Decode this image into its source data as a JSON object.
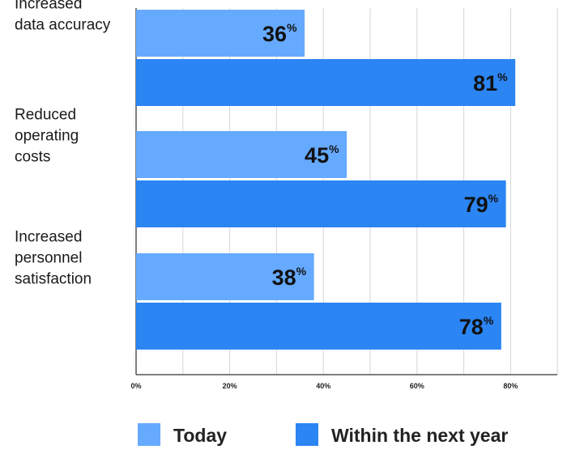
{
  "chart_data": {
    "type": "bar",
    "orientation": "horizontal",
    "categories": [
      [
        "Increased",
        "data accuracy"
      ],
      [
        "Reduced",
        "operating",
        "costs"
      ],
      [
        "Increased",
        "personnel",
        "satisfaction"
      ]
    ],
    "series": [
      {
        "name": "Today",
        "values": [
          36,
          45,
          38
        ],
        "color": "#66aaff"
      },
      {
        "name": "Within the next year",
        "values": [
          81,
          79,
          78
        ],
        "color": "#2b85f3"
      }
    ],
    "value_unit": "%",
    "xlim": [
      0,
      90
    ],
    "x_ticks": [
      0,
      20,
      40,
      60,
      80
    ],
    "x_tick_labels": [
      "0%",
      "20%",
      "40%",
      "60%",
      "80%"
    ],
    "grid": true,
    "legend_position": "bottom",
    "title": "",
    "xlabel": "",
    "ylabel": ""
  }
}
